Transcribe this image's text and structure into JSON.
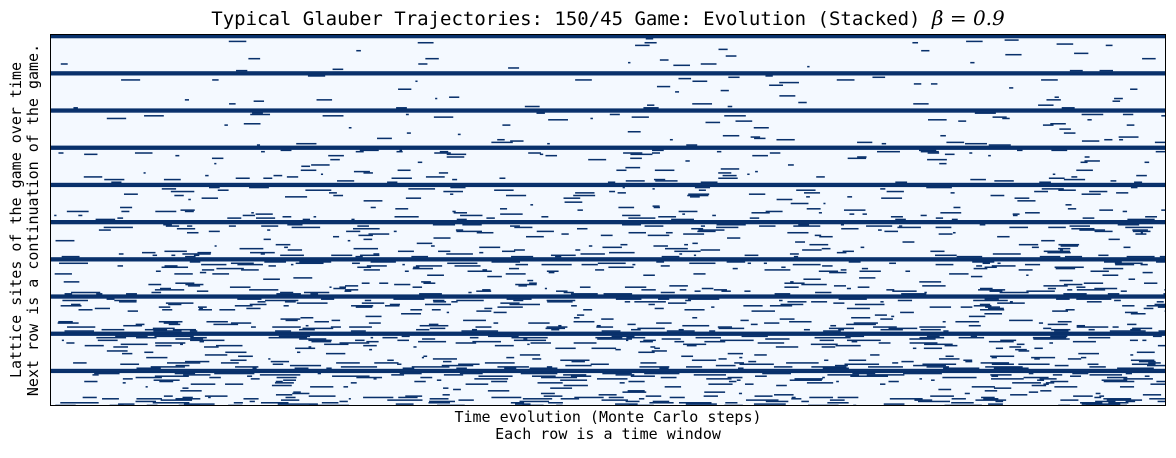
{
  "chart_data": {
    "type": "heatmap",
    "title_text": "Typical Glauber Trajectories:  150/45 Game:  Evolution (Stacked) ",
    "title_symbol": "β",
    "title_math_value": " = 0.9",
    "xlabel_lines": [
      "Time evolution (Monte Carlo steps)",
      "Each row is a time window"
    ],
    "ylabel_lines": [
      "Lattice sites of the game over time",
      "Next row is a continuation of the game."
    ],
    "xticks": [],
    "yticks": [],
    "grid": false,
    "legend": "none",
    "colormap": "Blues",
    "colors": {
      "low": "#f4f9ff",
      "high": "#08306b"
    },
    "values": [
      0,
      1
    ],
    "windows": 10,
    "rows_per_window": 28,
    "row_values": [
      1,
      1,
      1,
      0,
      0,
      0,
      0,
      0,
      0,
      0,
      0,
      0,
      0,
      0,
      0,
      0,
      0,
      0,
      0,
      0,
      0,
      0,
      0,
      0,
      0,
      0,
      0,
      0
    ],
    "noise_level_by_window": [
      0.05,
      0.08,
      0.12,
      0.2,
      0.28,
      0.36,
      0.44,
      0.52,
      0.6,
      0.68
    ]
  }
}
